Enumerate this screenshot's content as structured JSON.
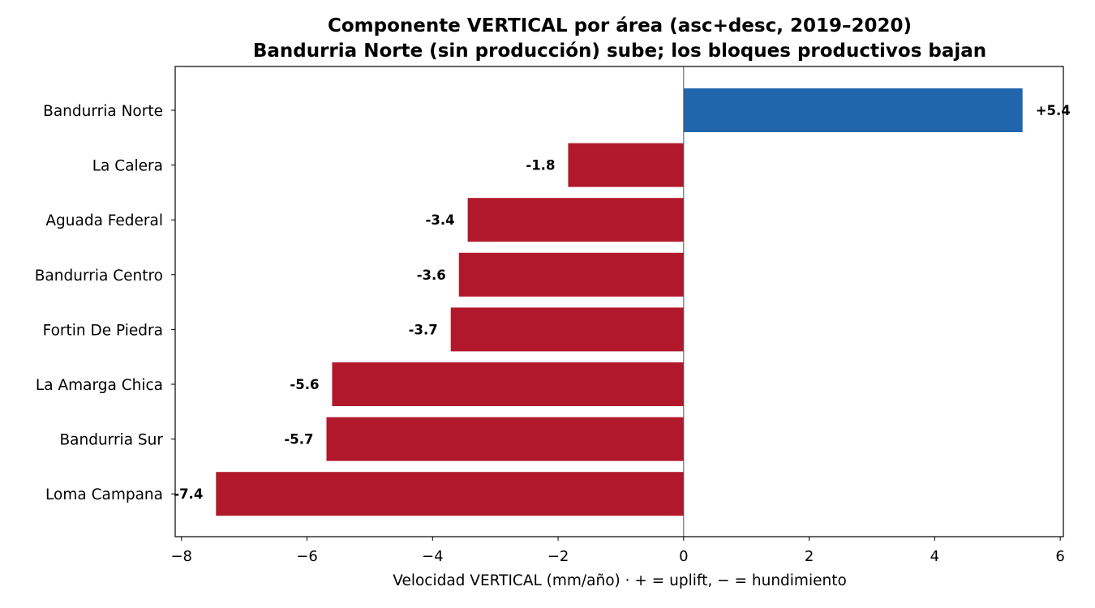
{
  "chart_data": {
    "type": "bar",
    "orientation": "horizontal",
    "title": "Componente VERTICAL por área (asc+desc, 2019–2020)",
    "subtitle": "Bandurria Norte (sin producción) sube; los bloques productivos bajan",
    "xlabel": "Velocidad VERTICAL (mm/año)  ·  + = uplift, − = hundimiento",
    "ylabel": "",
    "xlim": [
      -8.1,
      6.05
    ],
    "xticks": [
      -8,
      -6,
      -4,
      -2,
      0,
      2,
      4,
      6
    ],
    "xtick_labels": [
      "−8",
      "−6",
      "−4",
      "−2",
      "0",
      "2",
      "4",
      "6"
    ],
    "grid": false,
    "categories": [
      "Bandurria Norte",
      "La Calera",
      "Aguada Federal",
      "Bandurria Centro",
      "Fortin De Piedra",
      "La Amarga Chica",
      "Bandurria Sur",
      "Loma Campana"
    ],
    "values": [
      5.4,
      -1.84,
      -3.44,
      -3.58,
      -3.71,
      -5.6,
      -5.69,
      -7.45
    ],
    "data_labels": [
      "+5.4",
      "-1.8",
      "-3.4",
      "-3.6",
      "-3.7",
      "-5.6",
      "-5.7",
      "-7.4"
    ],
    "colors": {
      "positive": "#2166ac",
      "negative": "#b2182b",
      "zero_line": "#555555"
    }
  }
}
